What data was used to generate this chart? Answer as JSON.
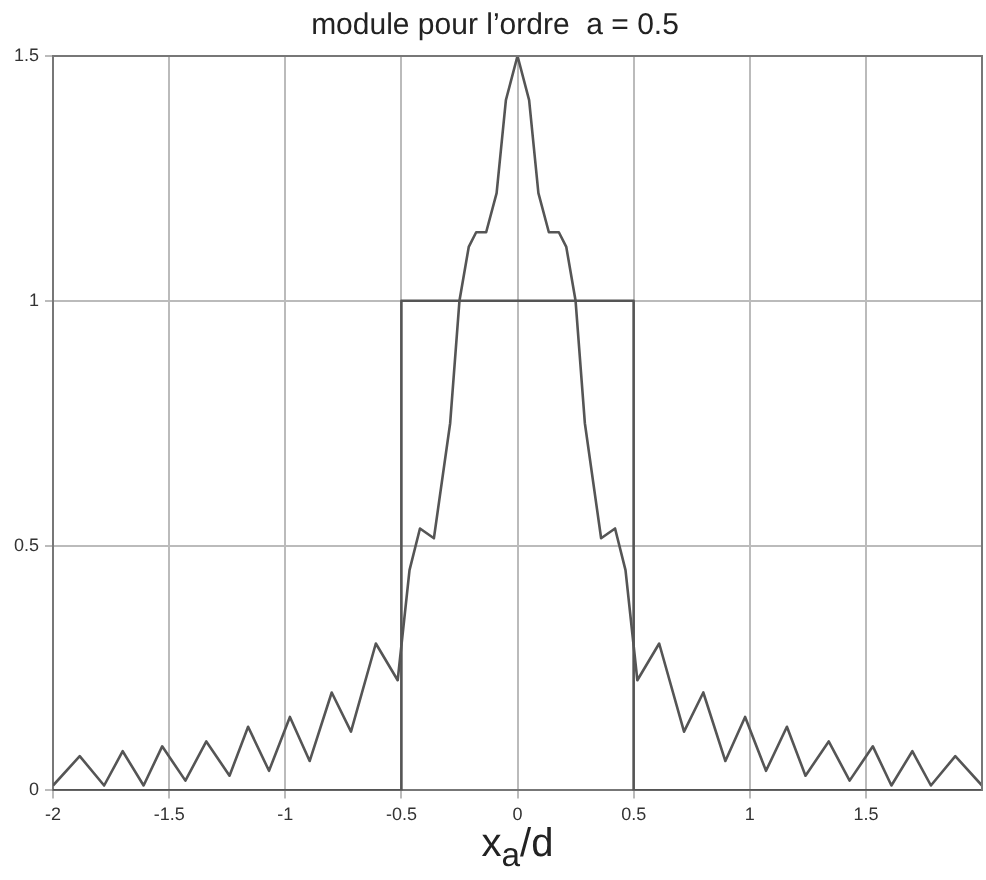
{
  "chart_data": {
    "type": "line",
    "title": "module pour l’ordre  a = 0.5",
    "xlabel": "x$_{a}$/d",
    "xlim": [
      -2,
      2
    ],
    "ylim": [
      0,
      1.5
    ],
    "xticks": [
      -2,
      -1.5,
      -1,
      -0.5,
      0,
      0.5,
      1,
      1.5
    ],
    "yticks": [
      0,
      0.5,
      1,
      1.5
    ],
    "grid": true,
    "legend": false,
    "marker": "none",
    "line_style": "solid",
    "series": [
      {
        "color": "#555555",
        "x": [
          -2,
          -1.885,
          -1.78,
          -1.7,
          -1.61,
          -1.53,
          -1.43,
          -1.34,
          -1.24,
          -1.16,
          -1.07,
          -0.98,
          -0.895,
          -0.8,
          -0.717,
          -0.61,
          -0.516,
          -0.465,
          -0.42,
          -0.36,
          -0.29,
          -0.25,
          -0.21,
          -0.178,
          -0.135,
          -0.09,
          -0.05,
          0,
          0.05,
          0.09,
          0.135,
          0.178,
          0.21,
          0.25,
          0.29,
          0.36,
          0.42,
          0.465,
          0.516,
          0.61,
          0.717,
          0.8,
          0.895,
          0.98,
          1.07,
          1.16,
          1.24,
          1.34,
          1.43,
          1.53,
          1.61,
          1.7,
          1.78,
          1.885,
          2
        ],
        "values": [
          0.01,
          0.07,
          0.01,
          0.08,
          0.01,
          0.09,
          0.02,
          0.1,
          0.03,
          0.13,
          0.04,
          0.15,
          0.06,
          0.2,
          0.12,
          0.3,
          0.225,
          0.45,
          0.535,
          0.515,
          0.75,
          1,
          1.11,
          1.14,
          1.14,
          1.22,
          1.41,
          1.5,
          1.41,
          1.22,
          1.14,
          1.14,
          1.11,
          1,
          0.75,
          0.515,
          0.535,
          0.45,
          0.225,
          0.3,
          0.12,
          0.2,
          0.06,
          0.15,
          0.04,
          0.13,
          0.03,
          0.1,
          0.02,
          0.09,
          0.01,
          0.08,
          0.01,
          0.07,
          0.01
        ]
      },
      {
        "color": "#555555",
        "x": [
          -2,
          -0.5,
          -0.5,
          0.5,
          0.5,
          2
        ],
        "values": [
          0,
          0,
          1,
          1,
          0,
          0
        ]
      }
    ]
  }
}
